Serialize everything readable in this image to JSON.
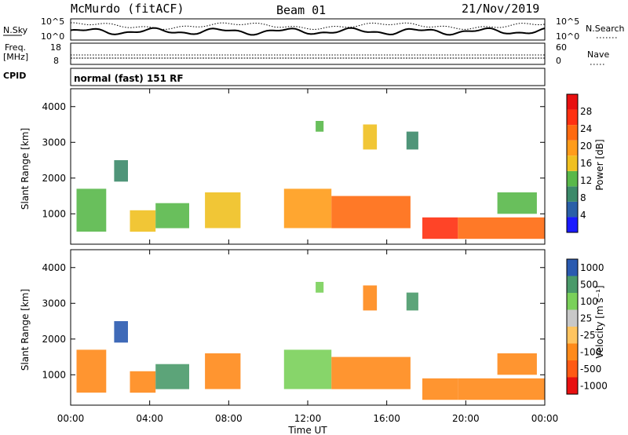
{
  "header": {
    "station": "McMurdo (fitACF)",
    "beam": "Beam 01",
    "date": "21/Nov/2019"
  },
  "top_panels": {
    "nsky_label": "N.Sky",
    "nsearch_label": "N.Search",
    "nsky_tick_hi": "10^5",
    "nsky_tick_lo": "10^0",
    "nsearch_tick_hi": "10^5",
    "nsearch_tick_lo": "10^0",
    "freq_label_1": "Freq.",
    "freq_label_2": "[MHz]",
    "freq_tick_hi": "18",
    "freq_tick_lo": "8",
    "nave_label": "Nave",
    "nave_tick_hi": "60",
    "nave_tick_lo": "0",
    "cpid_label": "CPID",
    "cpid_text": "normal (fast) 151 RF"
  },
  "colors": {
    "power_scale": [
      "#1a1aff",
      "#2a5fa8",
      "#3c8a6a",
      "#59b84a",
      "#f0c020",
      "#ff9c1a",
      "#ff6a10",
      "#ff3010",
      "#e81010"
    ],
    "velocity_scale": [
      "#e81010",
      "#ff5a14",
      "#ff8a1a",
      "#ffc460",
      "#c8c8c8",
      "#7ad05a",
      "#4a9a6a",
      "#2a5ab0"
    ]
  },
  "chart_data": [
    {
      "type": "heatmap",
      "name": "power",
      "xlabel": "",
      "ylabel": "Slant Range [km]",
      "y_ticks": [
        "1000",
        "2000",
        "3000",
        "4000"
      ],
      "ylim": [
        150,
        4500
      ],
      "xlim_hours": [
        0,
        24
      ],
      "colorbar_label": "Power [dB]",
      "colorbar_ticks": [
        "4",
        "8",
        "12",
        "16",
        "20",
        "24",
        "28"
      ],
      "colorbar_range": [
        0,
        32
      ],
      "regions": [
        {
          "t0": 0.3,
          "t1": 1.8,
          "r0": 500,
          "r1": 1700,
          "level": 14
        },
        {
          "t0": 2.2,
          "t1": 2.9,
          "r0": 1900,
          "r1": 2500,
          "level": 8
        },
        {
          "t0": 3.0,
          "t1": 4.3,
          "r0": 500,
          "r1": 1100,
          "level": 16
        },
        {
          "t0": 4.3,
          "t1": 6.0,
          "r0": 600,
          "r1": 1300,
          "level": 14
        },
        {
          "t0": 6.8,
          "t1": 8.6,
          "r0": 600,
          "r1": 1600,
          "level": 16
        },
        {
          "t0": 10.8,
          "t1": 13.2,
          "r0": 600,
          "r1": 1700,
          "level": 20
        },
        {
          "t0": 13.2,
          "t1": 17.2,
          "r0": 600,
          "r1": 1500,
          "level": 22
        },
        {
          "t0": 17.8,
          "t1": 19.6,
          "r0": 300,
          "r1": 900,
          "level": 28
        },
        {
          "t0": 19.6,
          "t1": 24.0,
          "r0": 300,
          "r1": 900,
          "level": 24
        },
        {
          "t0": 21.6,
          "t1": 23.6,
          "r0": 1000,
          "r1": 1600,
          "level": 14
        },
        {
          "t0": 12.4,
          "t1": 12.8,
          "r0": 3300,
          "r1": 3600,
          "level": 12
        },
        {
          "t0": 14.8,
          "t1": 15.5,
          "r0": 2800,
          "r1": 3500,
          "level": 16
        },
        {
          "t0": 17.0,
          "t1": 17.6,
          "r0": 2800,
          "r1": 3300,
          "level": 8
        }
      ]
    },
    {
      "type": "heatmap",
      "name": "velocity",
      "xlabel": "Time UT",
      "ylabel": "Slant Range [km]",
      "x_ticks": [
        "00:00",
        "04:00",
        "08:00",
        "12:00",
        "16:00",
        "20:00",
        "00:00"
      ],
      "y_ticks": [
        "1000",
        "2000",
        "3000",
        "4000"
      ],
      "ylim": [
        150,
        4500
      ],
      "xlim_hours": [
        0,
        24
      ],
      "colorbar_label": "Velocity [m s⁻¹]",
      "colorbar_ticks": [
        "1000",
        "500",
        "100",
        "25",
        "-25",
        "-100",
        "-500",
        "-1000"
      ],
      "regions": [
        {
          "t0": 0.3,
          "t1": 1.8,
          "r0": 500,
          "r1": 1700,
          "level": 2
        },
        {
          "t0": 2.2,
          "t1": 2.9,
          "r0": 1900,
          "r1": 2500,
          "level": 7
        },
        {
          "t0": 3.0,
          "t1": 4.3,
          "r0": 500,
          "r1": 1100,
          "level": 2
        },
        {
          "t0": 4.3,
          "t1": 6.0,
          "r0": 600,
          "r1": 1300,
          "level": 6
        },
        {
          "t0": 6.8,
          "t1": 8.6,
          "r0": 600,
          "r1": 1600,
          "level": 2
        },
        {
          "t0": 10.8,
          "t1": 13.2,
          "r0": 600,
          "r1": 1700,
          "level": 5
        },
        {
          "t0": 13.2,
          "t1": 17.2,
          "r0": 600,
          "r1": 1500,
          "level": 2
        },
        {
          "t0": 17.8,
          "t1": 19.6,
          "r0": 300,
          "r1": 900,
          "level": 2
        },
        {
          "t0": 19.6,
          "t1": 24.0,
          "r0": 300,
          "r1": 900,
          "level": 2
        },
        {
          "t0": 21.6,
          "t1": 23.6,
          "r0": 1000,
          "r1": 1600,
          "level": 2
        },
        {
          "t0": 12.4,
          "t1": 12.8,
          "r0": 3300,
          "r1": 3600,
          "level": 5
        },
        {
          "t0": 14.8,
          "t1": 15.5,
          "r0": 2800,
          "r1": 3500,
          "level": 2
        },
        {
          "t0": 17.0,
          "t1": 17.6,
          "r0": 2800,
          "r1": 3300,
          "level": 6
        }
      ]
    }
  ]
}
